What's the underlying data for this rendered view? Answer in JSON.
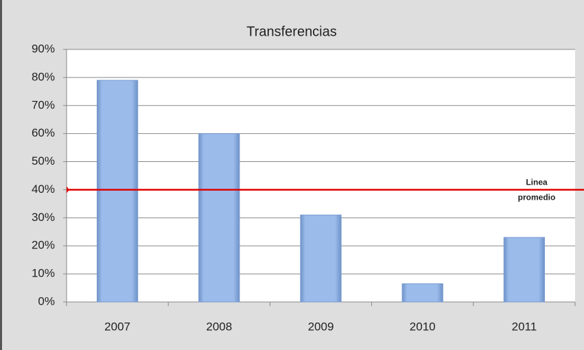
{
  "chart_data": {
    "type": "bar",
    "title": "Transferencias",
    "categories": [
      "2007",
      "2008",
      "2009",
      "2010",
      "2011"
    ],
    "values": [
      79,
      60,
      31,
      6.5,
      23
    ],
    "color": "#95b3e3",
    "ylim": [
      0,
      90
    ],
    "yticks": [
      {
        "value": 0,
        "label": "0%"
      },
      {
        "value": 10,
        "label": "10%"
      },
      {
        "value": 20,
        "label": "20%"
      },
      {
        "value": 30,
        "label": "30%"
      },
      {
        "value": 40,
        "label": "40%"
      },
      {
        "value": 50,
        "label": "50%"
      },
      {
        "value": 60,
        "label": "60%"
      },
      {
        "value": 70,
        "label": "70%"
      },
      {
        "value": 80,
        "label": "80%"
      },
      {
        "value": 90,
        "label": "90%"
      }
    ],
    "grid": true,
    "reference_line": {
      "value": 40,
      "color": "#e00000",
      "label": [
        "Linea",
        "promedio"
      ]
    }
  }
}
